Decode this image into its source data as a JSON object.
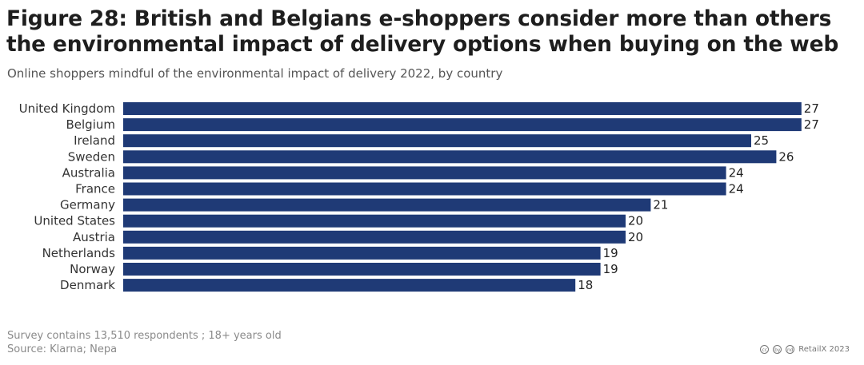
{
  "title": "Figure 28: British and Belgians e-shoppers consider more than others the environmental impact of delivery options when buying on the web",
  "subtitle": "Online shoppers mindful of the environmental impact of delivery 2022, by country",
  "footer": {
    "note": "Survey contains 13,510 respondents ; 18+ years old",
    "source": "Source: Klarna; Nepa",
    "credit": "RetailX 2023",
    "license_icons": [
      "cc",
      "by",
      "nd"
    ]
  },
  "colors": {
    "bar": "#1f3a76"
  },
  "chart_data": {
    "type": "bar",
    "orientation": "horizontal",
    "title": "Figure 28: British and Belgians e-shoppers consider more than others the environmental impact of delivery options when buying on the web",
    "subtitle": "Online shoppers mindful of the environmental impact of delivery 2022, by country",
    "categories": [
      "United Kingdom",
      "Belgium",
      "Ireland",
      "Sweden",
      "Australia",
      "France",
      "Germany",
      "United States",
      "Austria",
      "Netherlands",
      "Norway",
      "Denmark"
    ],
    "values": [
      27,
      27,
      25,
      26,
      24,
      24,
      21,
      20,
      20,
      19,
      19,
      18
    ],
    "xlabel": "",
    "ylabel": "",
    "grid": false
  }
}
